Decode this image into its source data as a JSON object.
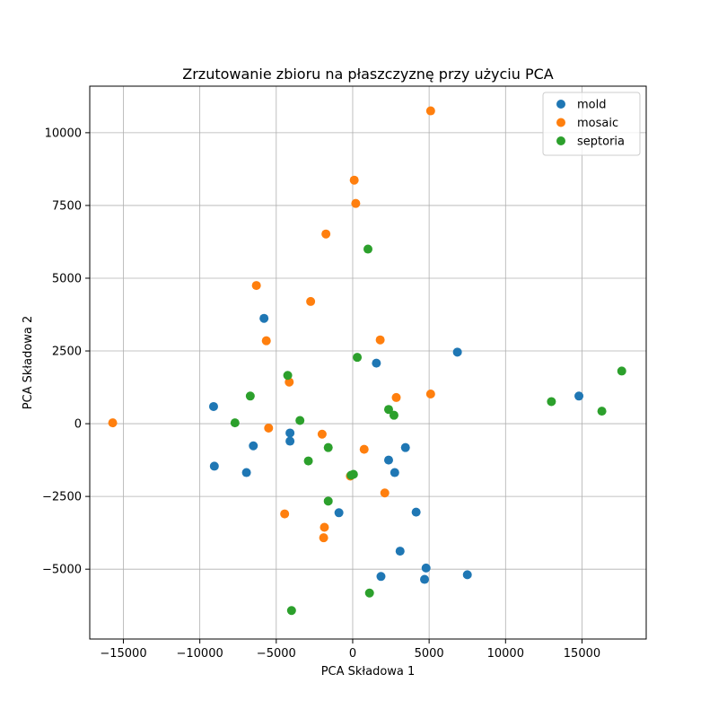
{
  "chart_data": {
    "type": "scatter",
    "title": "Zrzutowanie zbioru na płaszczyznę przy użyciu PCA",
    "xlabel": "PCA Składowa 1",
    "ylabel": "PCA Składowa 2",
    "xlim": [
      -17200,
      19200
    ],
    "ylim": [
      -7400,
      11600
    ],
    "xticks": [
      -15000,
      -10000,
      -5000,
      0,
      5000,
      10000,
      15000
    ],
    "xtick_labels": [
      "−15000",
      "−10000",
      "−5000",
      "0",
      "5000",
      "10000",
      "15000"
    ],
    "yticks": [
      -5000,
      -2500,
      0,
      2500,
      5000,
      7500,
      10000
    ],
    "ytick_labels": [
      "−5000",
      "−2500",
      "0",
      "2500",
      "5000",
      "7500",
      "10000"
    ],
    "grid": true,
    "legend_position": "top-right",
    "series": [
      {
        "name": "mold",
        "color": "#1f77b4",
        "points": [
          [
            -5800,
            3620
          ],
          [
            6850,
            2460
          ],
          [
            14800,
            950
          ],
          [
            1550,
            2080
          ],
          [
            -9100,
            590
          ],
          [
            -4100,
            -320
          ],
          [
            -6500,
            -760
          ],
          [
            -4100,
            -600
          ],
          [
            3450,
            -820
          ],
          [
            2350,
            -1250
          ],
          [
            -9050,
            -1460
          ],
          [
            -6950,
            -1680
          ],
          [
            2750,
            -1680
          ],
          [
            -900,
            -3060
          ],
          [
            4150,
            -3040
          ],
          [
            3100,
            -4380
          ],
          [
            4800,
            -4960
          ],
          [
            7500,
            -5190
          ],
          [
            1850,
            -5250
          ],
          [
            4700,
            -5350
          ]
        ]
      },
      {
        "name": "mosaic",
        "color": "#ff7f0e",
        "points": [
          [
            5100,
            10750
          ],
          [
            100,
            8370
          ],
          [
            200,
            7570
          ],
          [
            -1750,
            6520
          ],
          [
            -6300,
            4750
          ],
          [
            -2750,
            4200
          ],
          [
            -5650,
            2850
          ],
          [
            1800,
            2880
          ],
          [
            -4150,
            1430
          ],
          [
            2850,
            900
          ],
          [
            5100,
            1020
          ],
          [
            -15700,
            30
          ],
          [
            -5500,
            -150
          ],
          [
            -2000,
            -360
          ],
          [
            750,
            -880
          ],
          [
            -150,
            -1800
          ],
          [
            2100,
            -2380
          ],
          [
            -4450,
            -3100
          ],
          [
            -1850,
            -3560
          ],
          [
            -1900,
            -3920
          ]
        ]
      },
      {
        "name": "septoria",
        "color": "#2ca02c",
        "points": [
          [
            1000,
            6000
          ],
          [
            300,
            2280
          ],
          [
            17600,
            1810
          ],
          [
            -4250,
            1660
          ],
          [
            -6700,
            950
          ],
          [
            13000,
            760
          ],
          [
            2350,
            490
          ],
          [
            16300,
            430
          ],
          [
            2700,
            290
          ],
          [
            -3450,
            110
          ],
          [
            -7700,
            30
          ],
          [
            -1600,
            -820
          ],
          [
            -2900,
            -1280
          ],
          [
            -100,
            -1770
          ],
          [
            50,
            -1740
          ],
          [
            -1600,
            -2660
          ],
          [
            1100,
            -5820
          ],
          [
            -4000,
            -6420
          ]
        ]
      }
    ]
  }
}
